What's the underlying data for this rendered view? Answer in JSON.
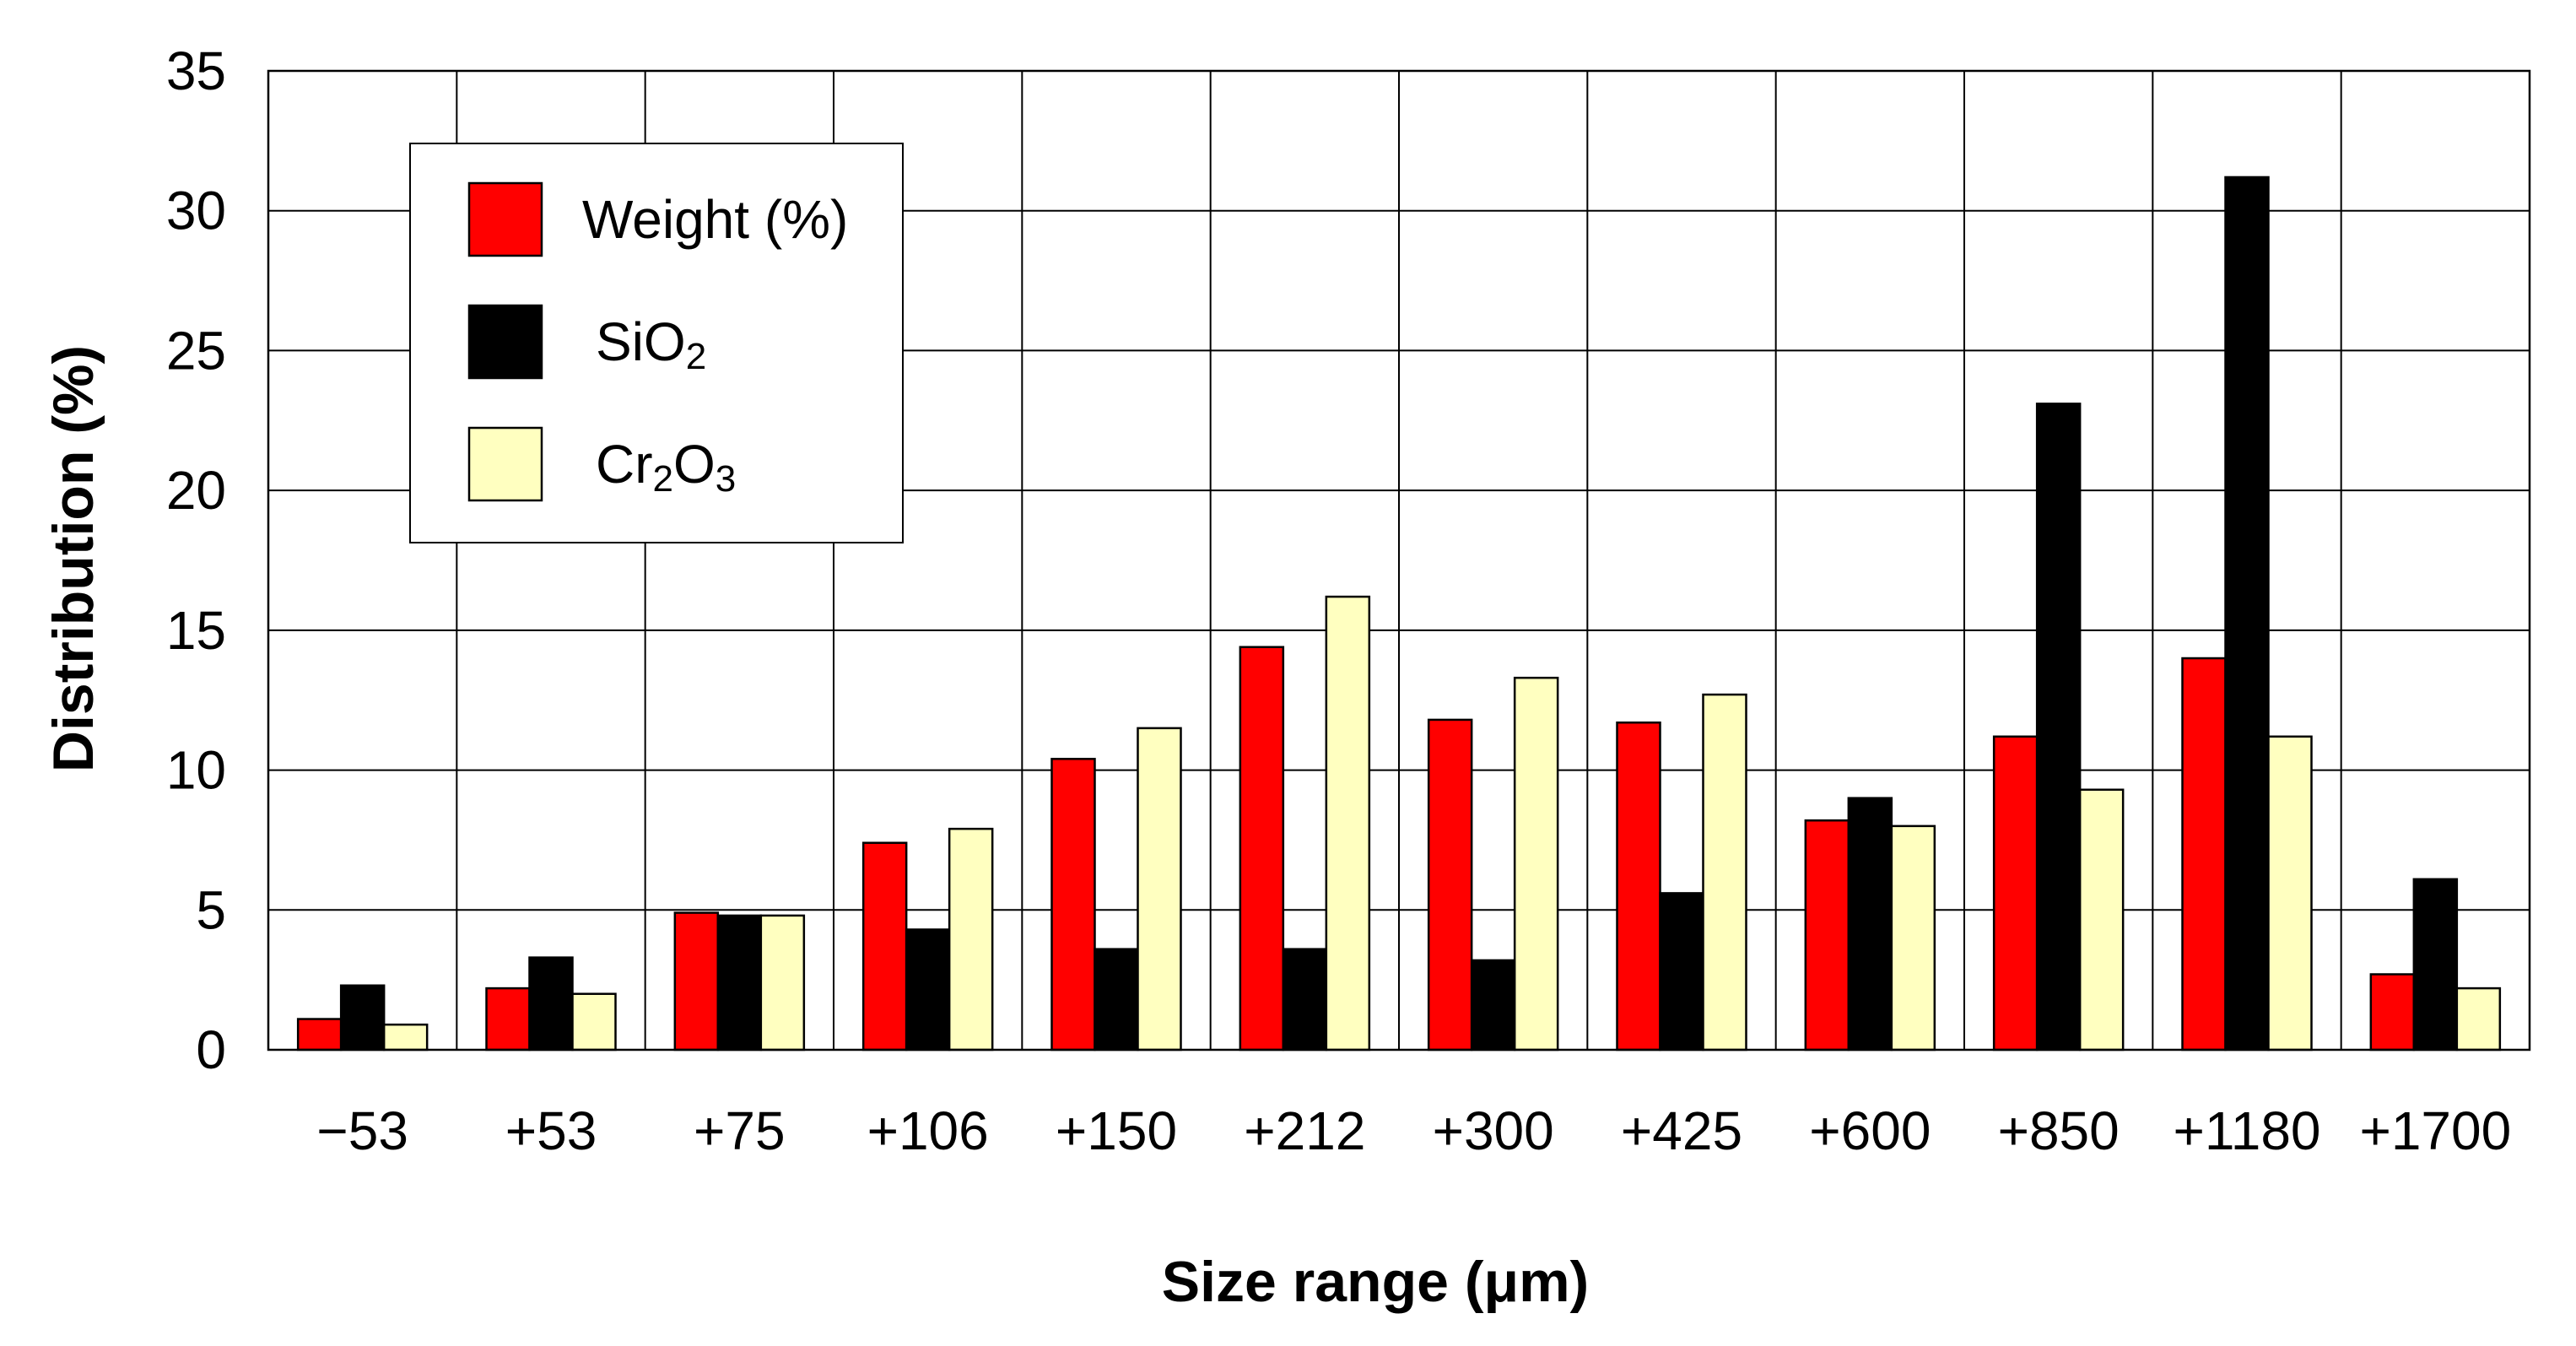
{
  "chart_data": {
    "type": "bar",
    "title": "",
    "xlabel": "Size range (μm)",
    "ylabel": "Distribution (%)",
    "ylim": [
      0,
      35
    ],
    "yticks": [
      0,
      5,
      10,
      15,
      20,
      25,
      30,
      35
    ],
    "categories": [
      "−53",
      "+53",
      "+75",
      "+106",
      "+150",
      "+212",
      "+300",
      "+425",
      "+600",
      "+850",
      "+1180",
      "+1700"
    ],
    "grid": true,
    "legend_position": "top-left",
    "series": [
      {
        "name": "Weight (%)",
        "label_main": "Weight (%)",
        "label_sub": "",
        "label_tail": "",
        "color": "#ff0000",
        "values": [
          1.1,
          2.2,
          4.9,
          7.4,
          10.4,
          14.4,
          11.8,
          11.7,
          8.2,
          11.2,
          14.0,
          2.7
        ]
      },
      {
        "name": "SiO2",
        "label_main": "SiO",
        "label_sub": "2",
        "label_tail": "",
        "color": "#000000",
        "values": [
          2.3,
          3.3,
          4.8,
          4.3,
          3.6,
          3.6,
          3.2,
          5.6,
          9.0,
          23.1,
          31.2,
          6.1
        ]
      },
      {
        "name": "Cr2O3",
        "label_main": "Cr",
        "label_sub": "2",
        "label_tail": "O",
        "label_sub2": "3",
        "color": "#ffffc0",
        "values": [
          0.9,
          2.0,
          4.8,
          7.9,
          11.5,
          16.2,
          13.3,
          12.7,
          8.0,
          9.3,
          11.2,
          2.2
        ]
      }
    ]
  }
}
